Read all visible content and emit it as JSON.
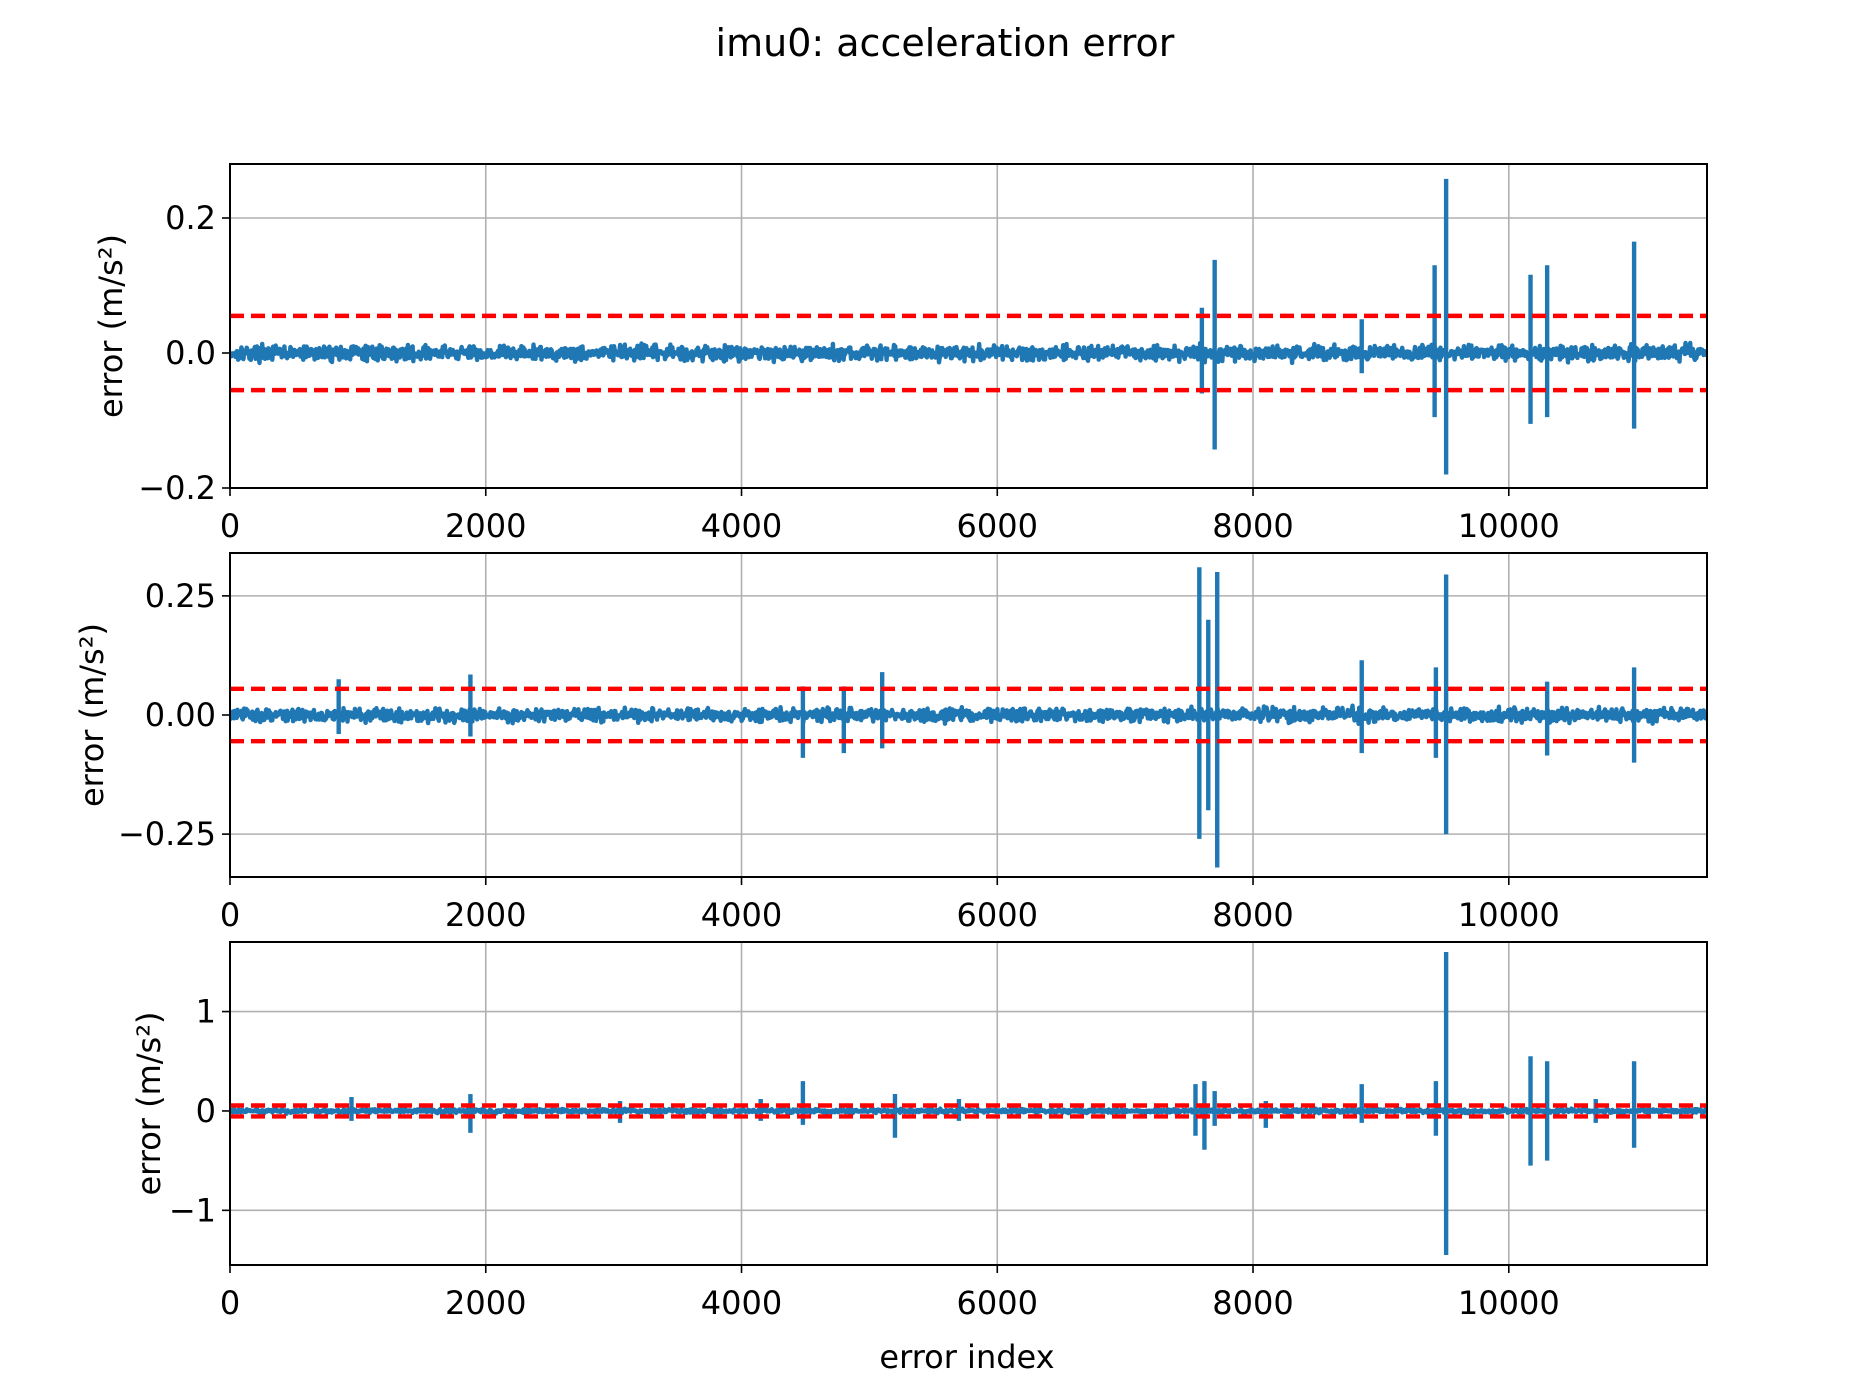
{
  "figure": {
    "title": "imu0: acceleration error",
    "xlabel": "error index"
  },
  "colors": {
    "series": "#1f77b4",
    "bounds": "#ff0000",
    "grid": "#b0b0b0"
  },
  "chart_data": [
    {
      "type": "line",
      "ylabel": "error (m/s²)",
      "xlim": [
        0,
        11550
      ],
      "ylim": [
        -0.2,
        0.28
      ],
      "xticks": [
        0,
        2000,
        4000,
        6000,
        8000,
        10000
      ],
      "xtick_labels": [
        "0",
        "2000",
        "4000",
        "6000",
        "8000",
        "10000"
      ],
      "yticks": [
        -0.2,
        0.0,
        0.2
      ],
      "ytick_labels": [
        "−0.2",
        "0.0",
        "0.2"
      ],
      "grid": true,
      "bounds": [
        -0.055,
        0.055
      ],
      "noise_amplitude": 0.016,
      "spikes": [
        {
          "x": 7600,
          "max": 0.067,
          "min": -0.06
        },
        {
          "x": 7700,
          "max": 0.138,
          "min": -0.143
        },
        {
          "x": 8850,
          "max": 0.05,
          "min": -0.03
        },
        {
          "x": 9420,
          "max": 0.13,
          "min": -0.095
        },
        {
          "x": 9510,
          "max": 0.258,
          "min": -0.18
        },
        {
          "x": 10170,
          "max": 0.116,
          "min": -0.105
        },
        {
          "x": 10300,
          "max": 0.13,
          "min": -0.095
        },
        {
          "x": 10980,
          "max": 0.165,
          "min": -0.112
        }
      ]
    },
    {
      "type": "line",
      "ylabel": "error (m/s²)",
      "xlim": [
        0,
        11550
      ],
      "ylim": [
        -0.34,
        0.34
      ],
      "xticks": [
        0,
        2000,
        4000,
        6000,
        8000,
        10000
      ],
      "xtick_labels": [
        "0",
        "2000",
        "4000",
        "6000",
        "8000",
        "10000"
      ],
      "yticks": [
        -0.25,
        0.0,
        0.25
      ],
      "ytick_labels": [
        "−0.25",
        "0.00",
        "0.25"
      ],
      "grid": true,
      "bounds": [
        -0.055,
        0.055
      ],
      "noise_amplitude": 0.02,
      "spikes": [
        {
          "x": 850,
          "max": 0.075,
          "min": -0.04
        },
        {
          "x": 1880,
          "max": 0.085,
          "min": -0.045
        },
        {
          "x": 4480,
          "max": 0.06,
          "min": -0.09
        },
        {
          "x": 4800,
          "max": 0.06,
          "min": -0.08
        },
        {
          "x": 5100,
          "max": 0.09,
          "min": -0.07
        },
        {
          "x": 7580,
          "max": 0.31,
          "min": -0.26
        },
        {
          "x": 7650,
          "max": 0.2,
          "min": -0.2
        },
        {
          "x": 7720,
          "max": 0.3,
          "min": -0.32
        },
        {
          "x": 8850,
          "max": 0.115,
          "min": -0.08
        },
        {
          "x": 9430,
          "max": 0.1,
          "min": -0.09
        },
        {
          "x": 9510,
          "max": 0.295,
          "min": -0.25
        },
        {
          "x": 10300,
          "max": 0.07,
          "min": -0.085
        },
        {
          "x": 10980,
          "max": 0.1,
          "min": -0.1
        }
      ]
    },
    {
      "type": "line",
      "ylabel": "error (m/s²)",
      "xlim": [
        0,
        11550
      ],
      "ylim": [
        -1.55,
        1.7
      ],
      "xticks": [
        0,
        2000,
        4000,
        6000,
        8000,
        10000
      ],
      "xtick_labels": [
        "0",
        "2000",
        "4000",
        "6000",
        "8000",
        "10000"
      ],
      "yticks": [
        -1,
        0,
        1
      ],
      "ytick_labels": [
        "−1",
        "0",
        "1"
      ],
      "grid": true,
      "bounds": [
        -0.055,
        0.055
      ],
      "noise_amplitude": 0.03,
      "spikes": [
        {
          "x": 950,
          "max": 0.14,
          "min": -0.1
        },
        {
          "x": 1880,
          "max": 0.17,
          "min": -0.22
        },
        {
          "x": 3050,
          "max": 0.1,
          "min": -0.12
        },
        {
          "x": 4150,
          "max": 0.12,
          "min": -0.1
        },
        {
          "x": 4480,
          "max": 0.3,
          "min": -0.14
        },
        {
          "x": 5200,
          "max": 0.17,
          "min": -0.27
        },
        {
          "x": 5700,
          "max": 0.12,
          "min": -0.1
        },
        {
          "x": 7550,
          "max": 0.27,
          "min": -0.25
        },
        {
          "x": 7620,
          "max": 0.3,
          "min": -0.39
        },
        {
          "x": 7700,
          "max": 0.2,
          "min": -0.15
        },
        {
          "x": 8100,
          "max": 0.1,
          "min": -0.17
        },
        {
          "x": 8850,
          "max": 0.27,
          "min": -0.12
        },
        {
          "x": 9430,
          "max": 0.3,
          "min": -0.25
        },
        {
          "x": 9510,
          "max": 1.6,
          "min": -1.45
        },
        {
          "x": 10170,
          "max": 0.55,
          "min": -0.55
        },
        {
          "x": 10300,
          "max": 0.5,
          "min": -0.5
        },
        {
          "x": 10680,
          "max": 0.12,
          "min": -0.12
        },
        {
          "x": 10980,
          "max": 0.5,
          "min": -0.37
        }
      ]
    }
  ]
}
